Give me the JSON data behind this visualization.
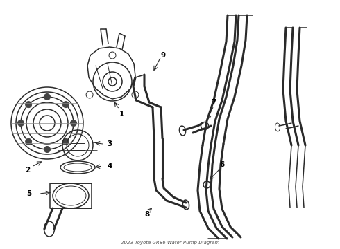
{
  "title": "2023 Toyota GR86 Water Pump Diagram",
  "background_color": "#ffffff",
  "line_color": "#2a2a2a",
  "label_color": "#000000",
  "lw_thin": 0.7,
  "lw_med": 1.1,
  "lw_thick": 2.2,
  "figw": 4.9,
  "figh": 3.6,
  "dpi": 100,
  "xlim": [
    0,
    490
  ],
  "ylim": [
    0,
    360
  ]
}
